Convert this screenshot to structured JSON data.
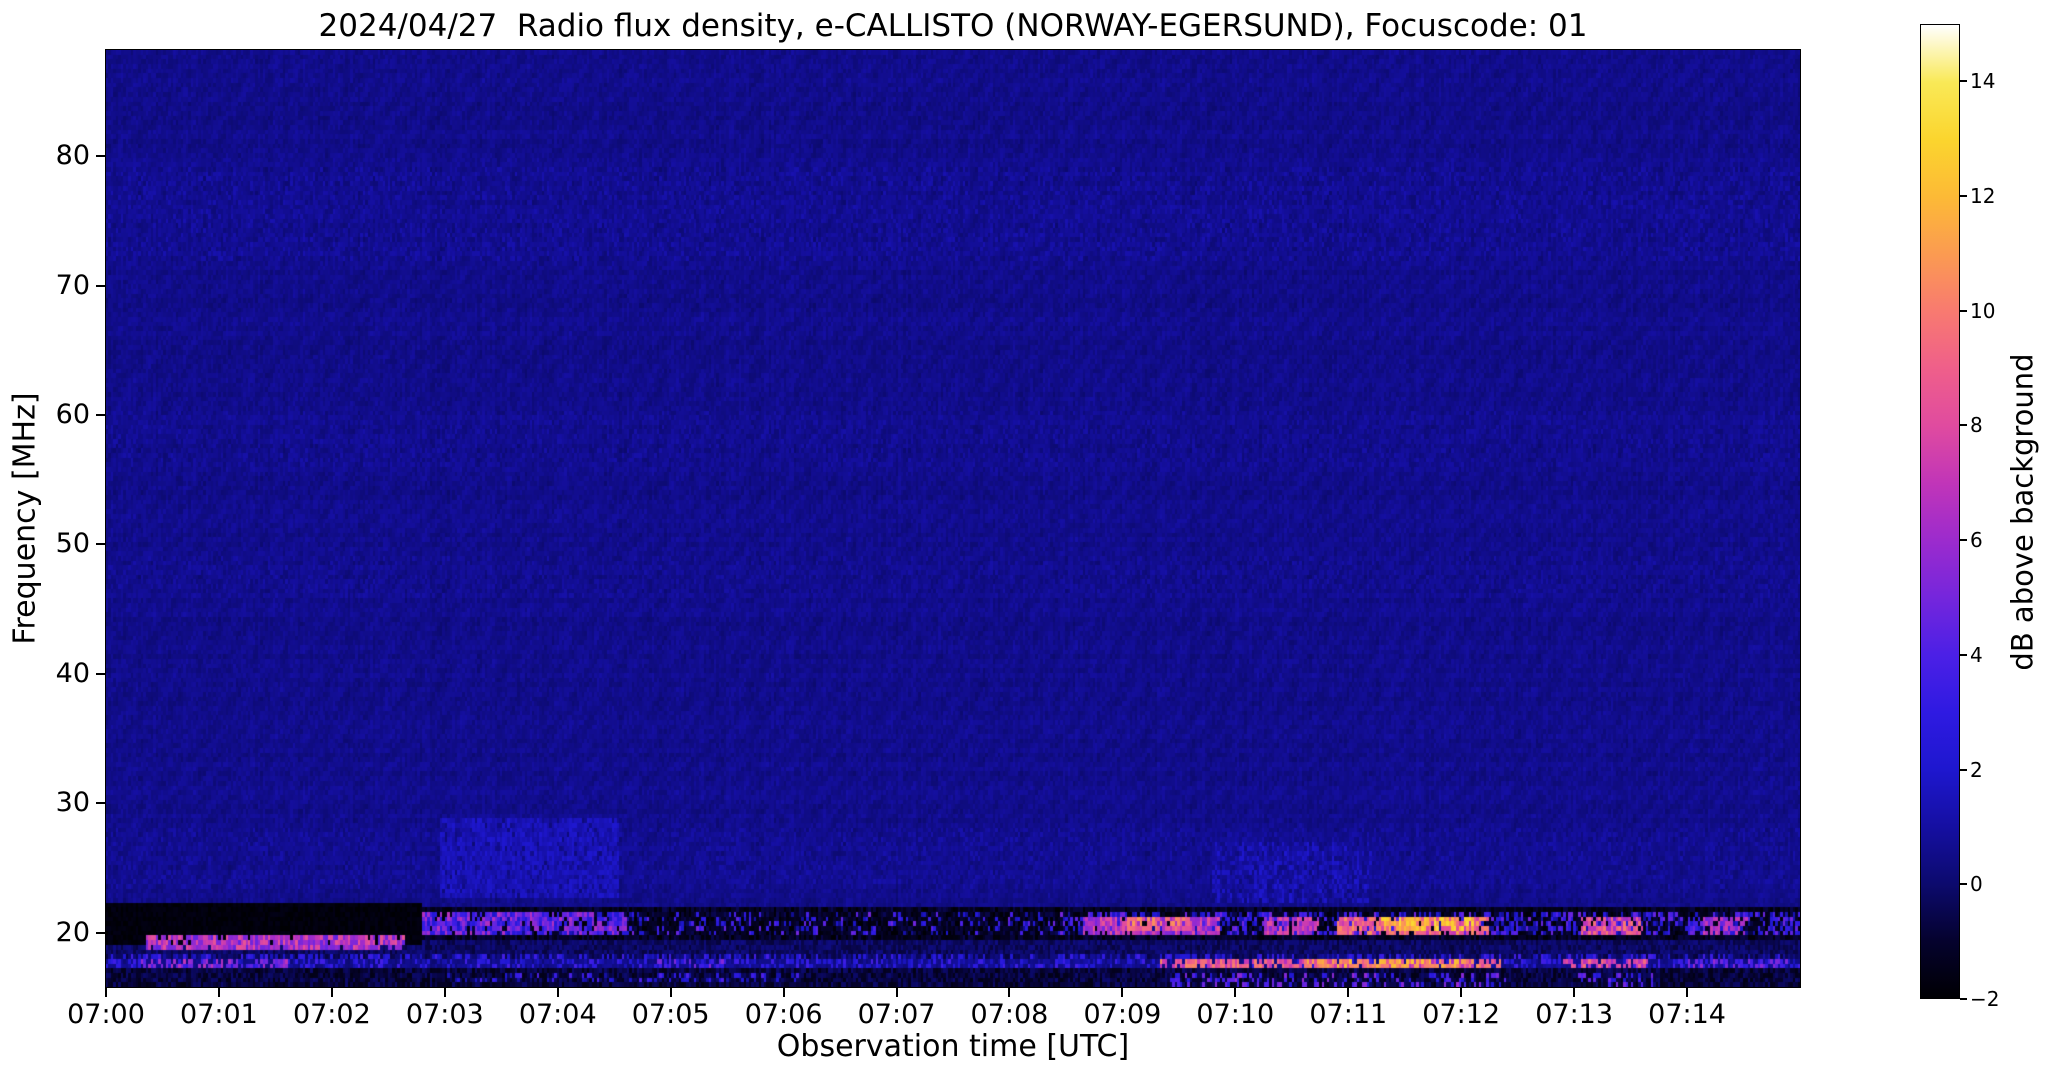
{
  "chart_data": {
    "type": "heatmap",
    "title": "2024/04/27  Radio flux density, e-CALLISTO (NORWAY-EGERSUND), Focuscode: 01",
    "xlabel": "Observation time [UTC]",
    "ylabel": "Frequency [MHz]",
    "x_tick_labels": [
      "07:00",
      "07:01",
      "07:02",
      "07:03",
      "07:04",
      "07:05",
      "07:06",
      "07:07",
      "07:08",
      "07:09",
      "07:10",
      "07:11",
      "07:12",
      "07:13",
      "07:14"
    ],
    "x_tick_minutes": [
      0,
      1,
      2,
      3,
      4,
      5,
      6,
      7,
      8,
      9,
      10,
      11,
      12,
      13,
      14
    ],
    "x_range_minutes": [
      0,
      15
    ],
    "y_tick_labels": [
      "20",
      "30",
      "40",
      "50",
      "60",
      "70",
      "80"
    ],
    "y_ticks_mhz": [
      20,
      30,
      40,
      50,
      60,
      70,
      80
    ],
    "y_range_mhz": [
      15.8,
      88.2
    ],
    "grid_on": false,
    "colorbar": {
      "label": "dB above background",
      "tick_values": [
        -2,
        0,
        2,
        4,
        6,
        8,
        10,
        12,
        14
      ],
      "tick_labels": [
        "−2",
        "0",
        "2",
        "4",
        "6",
        "8",
        "10",
        "12",
        "14"
      ],
      "value_range": [
        -2,
        15
      ],
      "colormap_stops": [
        [
          -2,
          "#000003"
        ],
        [
          -1,
          "#05022e"
        ],
        [
          0,
          "#0c0a6e"
        ],
        [
          1,
          "#150fa2"
        ],
        [
          2,
          "#1e17cf"
        ],
        [
          3,
          "#2f1ae2"
        ],
        [
          4,
          "#4c20e6"
        ],
        [
          5,
          "#7526dc"
        ],
        [
          6,
          "#9c2bcd"
        ],
        [
          7,
          "#c135b8"
        ],
        [
          8,
          "#e04b9f"
        ],
        [
          9,
          "#ef5f8a"
        ],
        [
          10,
          "#f87a70"
        ],
        [
          11,
          "#fb9b51"
        ],
        [
          12,
          "#fcba36"
        ],
        [
          13,
          "#fbd52e"
        ],
        [
          14,
          "#f9e957"
        ],
        [
          15,
          "#ffffff"
        ]
      ]
    },
    "background": {
      "level_db": 0.55,
      "noise_db": 0.3,
      "column_noise_db": 0.12,
      "row_noise_db": 0.1,
      "ripple_db": 0.12
    },
    "grid": {
      "cols": 680,
      "rows": 200,
      "seed": 20240427
    },
    "features": [
      {
        "t0": 0,
        "t1": 15,
        "f0": 72,
        "f1": 79,
        "db": 0.95,
        "jitter": 0.35,
        "duty": 0.3
      },
      {
        "t0": 0,
        "t1": 15,
        "f0": 56,
        "f1": 60,
        "db": 0.85,
        "jitter": 0.3,
        "duty": 0.25
      },
      {
        "t0": 0,
        "t1": 15,
        "f0": 46,
        "f1": 49,
        "db": 0.85,
        "jitter": 0.3,
        "duty": 0.25
      },
      {
        "t0": 0,
        "t1": 15,
        "f0": 23.5,
        "f1": 28,
        "db": 0.9,
        "jitter": 0.35,
        "duty": 0.3
      },
      {
        "t0": 2.95,
        "t1": 4.55,
        "f0": 23,
        "f1": 28.5,
        "db": 1.5,
        "jitter": 0.5,
        "duty": 0.85
      },
      {
        "t0": 9.8,
        "t1": 11.2,
        "f0": 22.5,
        "f1": 27,
        "db": 1.4,
        "jitter": 0.6,
        "duty": 0.5
      },
      {
        "t0": 0,
        "t1": 15,
        "f0": 18.1,
        "f1": 19.6,
        "db": -0.2,
        "jitter": 0.6,
        "duty": 1
      },
      {
        "t0": 0,
        "t1": 15,
        "f0": 19.6,
        "f1": 21.8,
        "db": -1.3,
        "jitter": 0.7,
        "duty": 1
      },
      {
        "t0": 0,
        "t1": 2.8,
        "f0": 19.4,
        "f1": 22.0,
        "db": -1.8,
        "jitter": 0.25,
        "duty": 1
      },
      {
        "t0": 0.35,
        "t1": 2.65,
        "f0": 18.9,
        "f1": 19.7,
        "db": 6.5,
        "jitter": 2.0,
        "duty": 0.9
      },
      {
        "t0": 2.8,
        "t1": 15,
        "f0": 19.8,
        "f1": 21.4,
        "db": 2.8,
        "jitter": 2.2,
        "duty": 0.5
      },
      {
        "t0": 2.8,
        "t1": 4.6,
        "f0": 19.9,
        "f1": 21.3,
        "db": 4.5,
        "jitter": 2.2,
        "duty": 0.7
      },
      {
        "t0": 4.6,
        "t1": 8.6,
        "f0": 19.7,
        "f1": 21.6,
        "db": -1.2,
        "jitter": 0.8,
        "duty": 0.55
      },
      {
        "t0": 8.65,
        "t1": 9.85,
        "f0": 19.9,
        "f1": 21.2,
        "db": 6.8,
        "jitter": 1.8,
        "duty": 0.85
      },
      {
        "t0": 9.05,
        "t1": 9.6,
        "f0": 20.2,
        "f1": 20.9,
        "db": 9.5,
        "jitter": 1.5,
        "duty": 0.7
      },
      {
        "t0": 10.25,
        "t1": 10.75,
        "f0": 19.9,
        "f1": 21.1,
        "db": 7,
        "jitter": 1.6,
        "duty": 0.75
      },
      {
        "t0": 10.9,
        "t1": 12.25,
        "f0": 20.0,
        "f1": 21.2,
        "db": 9,
        "jitter": 2.0,
        "duty": 0.8
      },
      {
        "t0": 11.3,
        "t1": 12.1,
        "f0": 20.3,
        "f1": 20.9,
        "db": 12,
        "jitter": 1.5,
        "duty": 0.65
      },
      {
        "t0": 13.05,
        "t1": 13.6,
        "f0": 19.9,
        "f1": 21.1,
        "db": 8,
        "jitter": 2.0,
        "duty": 0.75
      },
      {
        "t0": 14.15,
        "t1": 14.55,
        "f0": 19.9,
        "f1": 21.1,
        "db": 6,
        "jitter": 1.8,
        "duty": 0.6
      },
      {
        "t0": 0,
        "t1": 15,
        "f0": 16.9,
        "f1": 18.1,
        "db": 2.2,
        "jitter": 1.6,
        "duty": 0.45
      },
      {
        "t0": 0.3,
        "t1": 1.6,
        "f0": 17.0,
        "f1": 17.8,
        "db": 5.5,
        "jitter": 1.5,
        "duty": 0.55
      },
      {
        "t0": 4.8,
        "t1": 5.5,
        "f0": 17.0,
        "f1": 17.9,
        "db": 4,
        "jitter": 1.5,
        "duty": 0.5
      },
      {
        "t0": 9.3,
        "t1": 12.35,
        "f0": 17.0,
        "f1": 17.9,
        "db": 8.5,
        "jitter": 2.0,
        "duty": 0.7
      },
      {
        "t0": 10.6,
        "t1": 12.2,
        "f0": 17.1,
        "f1": 17.7,
        "db": 11,
        "jitter": 1.5,
        "duty": 0.55
      },
      {
        "t0": 12.9,
        "t1": 13.65,
        "f0": 17.0,
        "f1": 17.8,
        "db": 8,
        "jitter": 1.8,
        "duty": 0.65
      },
      {
        "t0": 14.0,
        "t1": 14.9,
        "f0": 17.0,
        "f1": 17.8,
        "db": 4.5,
        "jitter": 1.5,
        "duty": 0.5
      },
      {
        "t0": 0,
        "t1": 15,
        "f0": 15.8,
        "f1": 16.9,
        "db": -0.8,
        "jitter": 0.8,
        "duty": 1
      },
      {
        "t0": 3.0,
        "t1": 6.2,
        "f0": 16.2,
        "f1": 16.8,
        "db": 2.5,
        "jitter": 1.5,
        "duty": 0.25
      },
      {
        "t0": 9.4,
        "t1": 12.4,
        "f0": 16.0,
        "f1": 16.8,
        "db": 4,
        "jitter": 2.0,
        "duty": 0.3
      },
      {
        "t0": 13.0,
        "t1": 13.7,
        "f0": 16.0,
        "f1": 16.8,
        "db": 3.5,
        "jitter": 1.5,
        "duty": 0.3
      }
    ]
  }
}
